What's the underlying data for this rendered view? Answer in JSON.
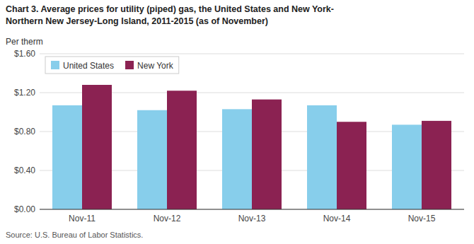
{
  "chart_data": {
    "type": "bar",
    "title": "Chart 3. Average prices for utility (piped) gas, the United States and New York-",
    "subtitle": "Northern New Jersey-Long Island, 2011-2015 (as of November)",
    "y_label": "Per therm",
    "source": "Source: U.S. Bureau of Labor Statistics.",
    "categories": [
      "Nov-11",
      "Nov-12",
      "Nov-13",
      "Nov-14",
      "Nov-15"
    ],
    "series": [
      {
        "name": "United States",
        "color": "#87CEEB",
        "values": [
          1.07,
          1.02,
          1.03,
          1.07,
          0.87
        ]
      },
      {
        "name": "New York",
        "color": "#8B2252",
        "values": [
          1.28,
          1.22,
          1.13,
          0.9,
          0.91
        ]
      }
    ],
    "ylim": [
      0.0,
      1.6
    ],
    "yticks": [
      {
        "value": 0.0,
        "label": "$0.00"
      },
      {
        "value": 0.4,
        "label": "$0.40"
      },
      {
        "value": 0.8,
        "label": "$0.80"
      },
      {
        "value": 1.2,
        "label": "$1.20"
      },
      {
        "value": 1.6,
        "label": "$1.60"
      }
    ],
    "grid": true,
    "legend": "upper left"
  }
}
